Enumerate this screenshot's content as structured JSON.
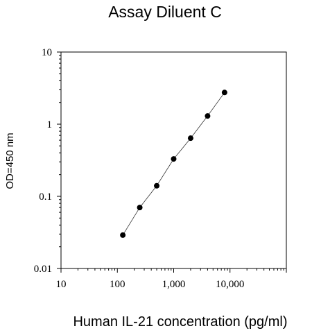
{
  "chart_data": {
    "type": "scatter",
    "title": "Assay Diluent C",
    "xlabel": "Human IL-21 concentration (pg/ml)",
    "ylabel": "OD=450 nm",
    "xscale": "log",
    "yscale": "log",
    "xlim": [
      10,
      100000
    ],
    "ylim": [
      0.01,
      10
    ],
    "x_ticks": [
      "10",
      "100",
      "1,000",
      "10,000"
    ],
    "y_ticks": [
      "0.01",
      "0.1",
      "1",
      "10"
    ],
    "grid": false,
    "fit_line": true,
    "points": [
      {
        "x": 125,
        "y": 0.029
      },
      {
        "x": 250,
        "y": 0.07
      },
      {
        "x": 500,
        "y": 0.14
      },
      {
        "x": 1000,
        "y": 0.33
      },
      {
        "x": 2000,
        "y": 0.64
      },
      {
        "x": 4000,
        "y": 1.3
      },
      {
        "x": 8000,
        "y": 2.75
      }
    ]
  }
}
